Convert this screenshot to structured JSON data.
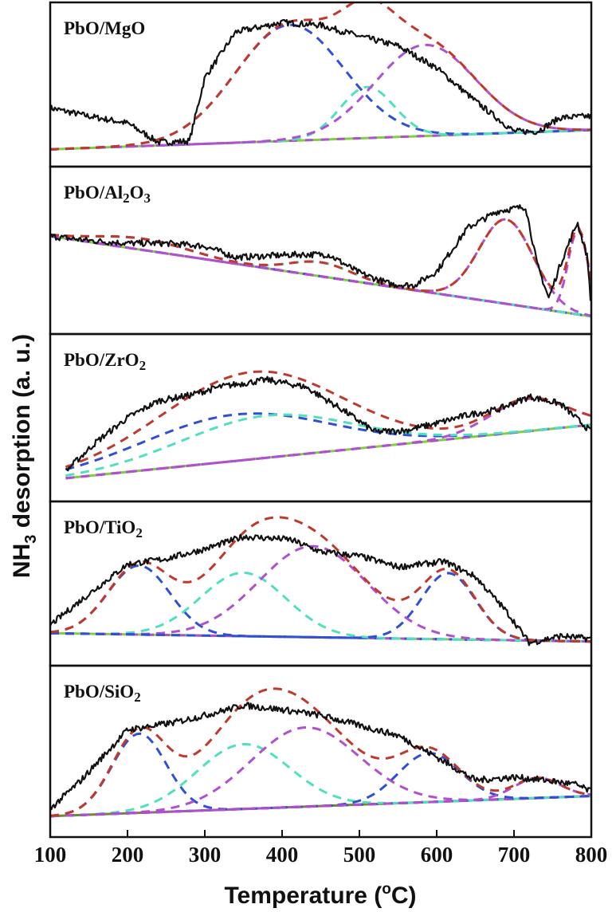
{
  "chart_data": {
    "type": "line",
    "xlabel": "Temperature (°C)",
    "ylabel": "NH3 desorption (a. u.)",
    "xlim": [
      100,
      800
    ],
    "xticks": [
      "100",
      "200",
      "300",
      "400",
      "500",
      "600",
      "700",
      "800"
    ],
    "grid": false,
    "colors": {
      "measured": "#111111",
      "fit": "#c0392b",
      "peak_blue": "#2f4fd6",
      "peak_cyan": "#4fe0c0",
      "peak_magenta": "#b04fd0",
      "baseline": "#7ed040",
      "baseline_alt": "#6b8e23"
    },
    "panels": [
      {
        "label": "PbO/MgO",
        "ylim": [
          0,
          1
        ],
        "baseline": [
          [
            100,
            0.03
          ],
          [
            800,
            0.17
          ]
        ],
        "measured": [
          [
            100,
            0.33
          ],
          [
            150,
            0.27
          ],
          [
            200,
            0.22
          ],
          [
            240,
            0.08
          ],
          [
            280,
            0.09
          ],
          [
            300,
            0.55
          ],
          [
            340,
            0.88
          ],
          [
            400,
            0.95
          ],
          [
            450,
            0.93
          ],
          [
            500,
            0.85
          ],
          [
            550,
            0.78
          ],
          [
            600,
            0.62
          ],
          [
            650,
            0.38
          ],
          [
            700,
            0.16
          ],
          [
            730,
            0.16
          ],
          [
            760,
            0.26
          ],
          [
            800,
            0.27
          ]
        ],
        "peaks": [
          {
            "color": "blue",
            "center": 410,
            "height": 0.84,
            "width": 70
          },
          {
            "color": "cyan",
            "center": 510,
            "height": 0.37,
            "width": 35
          },
          {
            "color": "magenta",
            "center": 585,
            "height": 0.66,
            "width": 65
          }
        ]
      },
      {
        "label": "PbO/Al2O3",
        "ylim": [
          0,
          1
        ],
        "baseline": [
          [
            100,
            0.6
          ],
          [
            800,
            0.03
          ]
        ],
        "measured": [
          [
            100,
            0.6
          ],
          [
            150,
            0.57
          ],
          [
            200,
            0.55
          ],
          [
            250,
            0.55
          ],
          [
            300,
            0.53
          ],
          [
            340,
            0.45
          ],
          [
            380,
            0.46
          ],
          [
            420,
            0.47
          ],
          [
            460,
            0.47
          ],
          [
            500,
            0.34
          ],
          [
            540,
            0.26
          ],
          [
            570,
            0.25
          ],
          [
            600,
            0.35
          ],
          [
            640,
            0.66
          ],
          [
            680,
            0.78
          ],
          [
            715,
            0.81
          ],
          [
            730,
            0.4
          ],
          [
            745,
            0.16
          ],
          [
            760,
            0.4
          ],
          [
            782,
            0.7
          ],
          [
            795,
            0.45
          ],
          [
            800,
            0.09
          ]
        ],
        "peaks": [
          {
            "color": "blue",
            "center": 220,
            "height": 0.08,
            "width": 60
          },
          {
            "color": "cyan",
            "center": 450,
            "height": 0.1,
            "width": 40
          },
          {
            "color": "magenta",
            "center": 690,
            "height": 0.6,
            "width": 35
          },
          {
            "color": "magenta",
            "center": 783,
            "height": 0.6,
            "width": 13
          }
        ]
      },
      {
        "label": "PbO/ZrO2",
        "ylim": [
          0,
          1
        ],
        "baseline": [
          [
            120,
            0.07
          ],
          [
            800,
            0.45
          ]
        ],
        "measured": [
          [
            120,
            0.12
          ],
          [
            160,
            0.33
          ],
          [
            200,
            0.5
          ],
          [
            240,
            0.62
          ],
          [
            280,
            0.66
          ],
          [
            320,
            0.72
          ],
          [
            380,
            0.77
          ],
          [
            430,
            0.72
          ],
          [
            480,
            0.55
          ],
          [
            520,
            0.4
          ],
          [
            560,
            0.41
          ],
          [
            600,
            0.46
          ],
          [
            640,
            0.52
          ],
          [
            680,
            0.56
          ],
          [
            720,
            0.65
          ],
          [
            760,
            0.6
          ],
          [
            800,
            0.4
          ]
        ],
        "peaks": [
          {
            "color": "blue",
            "center": 340,
            "height": 0.33,
            "width": 120
          },
          {
            "color": "cyan",
            "center": 380,
            "height": 0.3,
            "width": 110
          },
          {
            "color": "magenta",
            "center": 720,
            "height": 0.23,
            "width": 50
          }
        ]
      },
      {
        "label": "PbO/TiO2",
        "ylim": [
          0,
          1
        ],
        "baseline": [
          [
            100,
            0.14
          ],
          [
            800,
            0.08
          ]
        ],
        "measured": [
          [
            100,
            0.2
          ],
          [
            140,
            0.38
          ],
          [
            200,
            0.64
          ],
          [
            250,
            0.68
          ],
          [
            300,
            0.75
          ],
          [
            350,
            0.84
          ],
          [
            410,
            0.82
          ],
          [
            450,
            0.73
          ],
          [
            500,
            0.7
          ],
          [
            550,
            0.62
          ],
          [
            610,
            0.66
          ],
          [
            650,
            0.55
          ],
          [
            690,
            0.3
          ],
          [
            720,
            0.07
          ],
          [
            760,
            0.12
          ],
          [
            800,
            0.1
          ]
        ],
        "peaks": [
          {
            "color": "blue",
            "center": 215,
            "height": 0.5,
            "width": 40
          },
          {
            "color": "cyan",
            "center": 350,
            "height": 0.46,
            "width": 55
          },
          {
            "color": "magenta",
            "center": 440,
            "height": 0.66,
            "width": 70
          },
          {
            "color": "blue",
            "center": 615,
            "height": 0.48,
            "width": 35
          }
        ]
      },
      {
        "label": "PbO/SiO2",
        "ylim": [
          0,
          1
        ],
        "baseline": [
          [
            100,
            0.05
          ],
          [
            800,
            0.19
          ]
        ],
        "measured": [
          [
            100,
            0.1
          ],
          [
            140,
            0.3
          ],
          [
            200,
            0.65
          ],
          [
            260,
            0.7
          ],
          [
            300,
            0.75
          ],
          [
            350,
            0.82
          ],
          [
            400,
            0.79
          ],
          [
            450,
            0.75
          ],
          [
            500,
            0.68
          ],
          [
            550,
            0.61
          ],
          [
            600,
            0.46
          ],
          [
            650,
            0.3
          ],
          [
            700,
            0.32
          ],
          [
            740,
            0.3
          ],
          [
            780,
            0.27
          ],
          [
            800,
            0.22
          ]
        ],
        "peaks": [
          {
            "color": "blue",
            "center": 215,
            "height": 0.55,
            "width": 35
          },
          {
            "color": "cyan",
            "center": 350,
            "height": 0.45,
            "width": 60
          },
          {
            "color": "magenta",
            "center": 430,
            "height": 0.55,
            "width": 70
          },
          {
            "color": "blue",
            "center": 590,
            "height": 0.34,
            "width": 40
          },
          {
            "color": "magenta",
            "center": 730,
            "height": 0.14,
            "width": 30
          }
        ]
      }
    ]
  }
}
